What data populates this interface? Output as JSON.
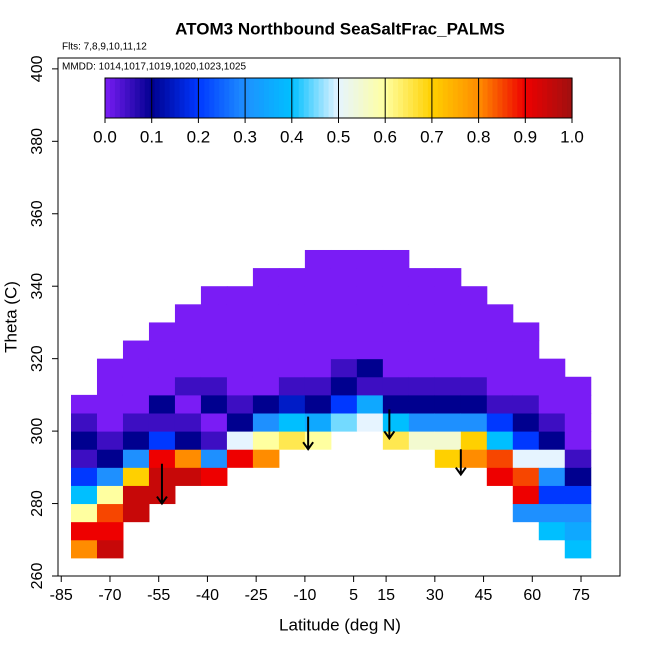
{
  "chart_data": {
    "type": "heatmap",
    "title": "ATOM3 Northbound SeaSaltFrac_PALMS",
    "subtitle": "Flts: 7,8,9,10,11,12",
    "annotation": "MMDD: 1014,1017,1019,1020,1023,1025",
    "x_label": "Latitude (deg N)",
    "y_label": "Theta (C)",
    "xlim": [
      -86,
      87
    ],
    "ylim": [
      260,
      403
    ],
    "xticks": [
      -85,
      -70,
      -55,
      -40,
      -25,
      -10,
      5,
      15,
      30,
      45,
      60,
      75
    ],
    "yticks": [
      260,
      280,
      300,
      320,
      340,
      360,
      380,
      400
    ],
    "lat_bin_width": 8,
    "theta_bin_height": 5,
    "colorscale": [
      "#7a1cf5",
      "#00008f",
      "#0038ff",
      "#1e90ff",
      "#00bfff",
      "#e6f4ff",
      "#ffffa0",
      "#ffd000",
      "#ff8c00",
      "#ee0000",
      "#a01010"
    ],
    "colorbar_ticks": [
      {
        "value": 0,
        "label": "0.0"
      },
      0.1,
      0.2,
      0.3,
      0.4,
      0.5,
      0.6,
      0.7,
      0.8,
      0.9,
      {
        "value": 1,
        "label": "1.0"
      }
    ],
    "columns": [
      {
        "lat": -78,
        "theta_bottom": 265,
        "values": [
          0.8,
          0.9,
          0.6,
          0.4,
          0.2,
          0.05,
          0.1,
          0.05,
          0
        ]
      },
      {
        "lat": -70,
        "theta_bottom": 265,
        "values": [
          0.95,
          0.9,
          0.85,
          0.6,
          0.3,
          0.1,
          0.05,
          0,
          0,
          0,
          0
        ]
      },
      {
        "lat": -62,
        "theta_bottom": 275,
        "values": [
          0.95,
          0.95,
          0.7,
          0.3,
          0.1,
          0.05,
          0,
          0,
          0,
          0
        ]
      },
      {
        "lat": -54,
        "theta_bottom": 280,
        "values": [
          0.95,
          0.95,
          0.9,
          0.2,
          0.05,
          0.1,
          0,
          0,
          0,
          0
        ]
      },
      {
        "lat": -46,
        "theta_bottom": 285,
        "values": [
          0.95,
          0.8,
          0.1,
          0.05,
          0,
          0.05,
          0,
          0,
          0,
          0
        ]
      },
      {
        "lat": -38,
        "theta_bottom": 285,
        "values": [
          0.9,
          0.3,
          0.05,
          0,
          0.1,
          0.05,
          0,
          0,
          0,
          0,
          0
        ]
      },
      {
        "lat": -30,
        "theta_bottom": 290,
        "values": [
          0.9,
          0.5,
          0.1,
          0.05,
          0,
          0,
          0,
          0,
          0,
          0
        ]
      },
      {
        "lat": -22,
        "theta_bottom": 290,
        "values": [
          0.8,
          0.6,
          0.3,
          0.1,
          0,
          0,
          0,
          0,
          0,
          0,
          0
        ]
      },
      {
        "lat": -14,
        "theta_bottom": 295,
        "values": [
          0.65,
          0.4,
          0.15,
          0.05,
          0,
          0,
          0,
          0,
          0,
          0
        ]
      },
      {
        "lat": -6,
        "theta_bottom": 295,
        "values": [
          0.6,
          0.35,
          0.1,
          0.05,
          0,
          0,
          0,
          0,
          0,
          0,
          0
        ]
      },
      {
        "lat": 2,
        "theta_bottom": 300,
        "values": [
          0.45,
          0.2,
          0.1,
          0.05,
          0,
          0,
          0,
          0,
          0,
          0
        ]
      },
      {
        "lat": 10,
        "theta_bottom": 300,
        "values": [
          0.5,
          0.35,
          0.05,
          0.1,
          0,
          0,
          0,
          0,
          0,
          0
        ]
      },
      {
        "lat": 18,
        "theta_bottom": 295,
        "values": [
          0.65,
          0.4,
          0.1,
          0.05,
          0,
          0,
          0,
          0,
          0,
          0,
          0
        ]
      },
      {
        "lat": 26,
        "theta_bottom": 295,
        "values": [
          0.55,
          0.3,
          0.1,
          0.05,
          0,
          0,
          0,
          0,
          0,
          0
        ]
      },
      {
        "lat": 34,
        "theta_bottom": 290,
        "values": [
          0.7,
          0.55,
          0.3,
          0.1,
          0.05,
          0,
          0,
          0,
          0,
          0,
          0
        ]
      },
      {
        "lat": 42,
        "theta_bottom": 290,
        "values": [
          0.8,
          0.7,
          0.3,
          0.1,
          0.05,
          0,
          0,
          0,
          0,
          0
        ]
      },
      {
        "lat": 50,
        "theta_bottom": 285,
        "values": [
          0.9,
          0.85,
          0.4,
          0.2,
          0.05,
          0,
          0,
          0,
          0,
          0
        ]
      },
      {
        "lat": 58,
        "theta_bottom": 275,
        "values": [
          0.3,
          0.9,
          0.85,
          0.5,
          0.2,
          0.1,
          0.05,
          0,
          0,
          0,
          0
        ]
      },
      {
        "lat": 66,
        "theta_bottom": 270,
        "values": [
          0.4,
          0.3,
          0.2,
          0.3,
          0.5,
          0.1,
          0.05,
          0,
          0,
          0
        ]
      },
      {
        "lat": 74,
        "theta_bottom": 265,
        "values": [
          0.4,
          0.35,
          0.3,
          0.2,
          0.1,
          0.05,
          0,
          0,
          0,
          0
        ]
      }
    ],
    "arrows": [
      {
        "lat": -54,
        "theta_top": 291,
        "theta_bottom": 280
      },
      {
        "lat": -9,
        "theta_top": 304,
        "theta_bottom": 295
      },
      {
        "lat": 16,
        "theta_top": 306,
        "theta_bottom": 298
      },
      {
        "lat": 38,
        "theta_top": 295,
        "theta_bottom": 288
      }
    ]
  }
}
